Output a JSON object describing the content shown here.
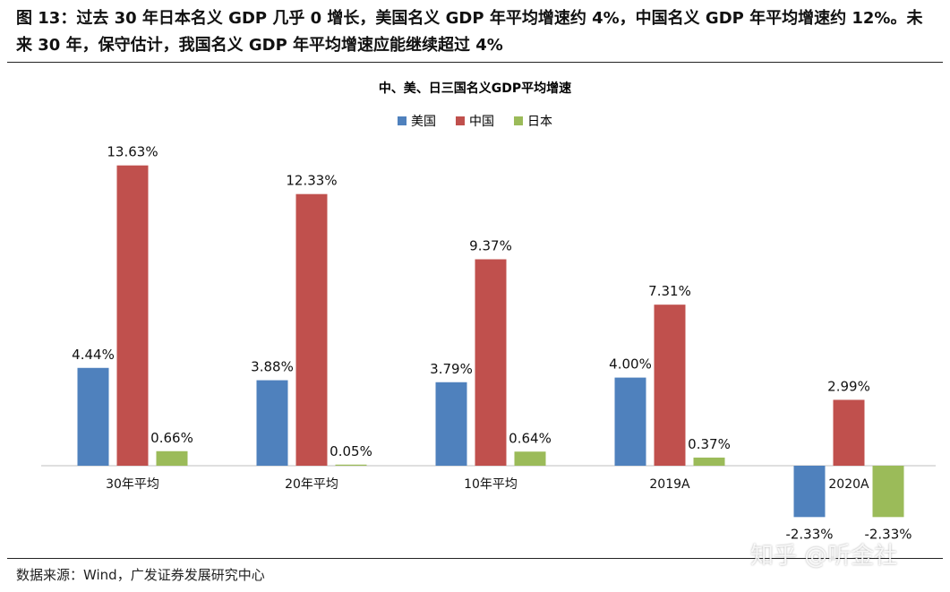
{
  "figure_title": "图 13：过去 30 年日本名义 GDP 几乎 0 增长，美国名义 GDP 年平均增速约 4%，中国名义 GDP 年平均增速约 12%。未来 30 年，保守估计，我国名义 GDP 年平均增速应能继续超过 4%",
  "source": "数据来源：Wind，广发证券发展研究中心",
  "watermark": "知乎 @听金社",
  "chart_data": {
    "type": "bar",
    "title": "中、美、日三国名义GDP平均增速",
    "categories": [
      "30年平均",
      "20年平均",
      "10年平均",
      "2019A",
      "2020A"
    ],
    "series": [
      {
        "name": "美国",
        "color": "#4F81BD",
        "values": [
          4.44,
          3.88,
          3.79,
          4.0,
          -2.33
        ],
        "labels": [
          "4.44%",
          "3.88%",
          "3.79%",
          "4.00%",
          "-2.33%"
        ]
      },
      {
        "name": "中国",
        "color": "#C0504D",
        "values": [
          13.63,
          12.33,
          9.37,
          7.31,
          2.99
        ],
        "labels": [
          "13.63%",
          "12.33%",
          "9.37%",
          "7.31%",
          "2.99%"
        ]
      },
      {
        "name": "日本",
        "color": "#9BBB59",
        "values": [
          0.66,
          0.05,
          0.64,
          0.37,
          -2.33
        ],
        "labels": [
          "0.66%",
          "0.05%",
          "0.64%",
          "0.37%",
          "-2.33%"
        ]
      }
    ],
    "legend_position": "top-center",
    "grid": false
  }
}
